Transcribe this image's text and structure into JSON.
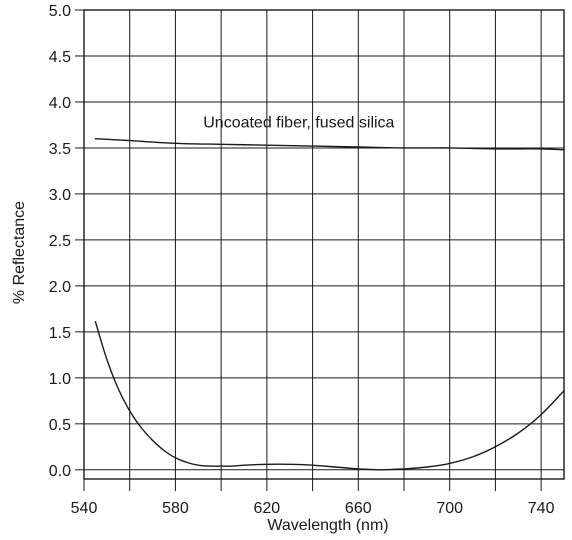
{
  "chart_data": {
    "type": "line",
    "title": "",
    "xlabel": "Wavelength (nm)",
    "ylabel": "% Reflectance",
    "xlim": [
      540,
      750
    ],
    "ylim": [
      -0.1,
      5.0
    ],
    "xticks": [
      540,
      580,
      620,
      660,
      700,
      740
    ],
    "xtick_labels": [
      "540",
      "580",
      "620",
      "660",
      "700",
      "740"
    ],
    "xgrid": [
      540,
      560,
      580,
      600,
      620,
      640,
      660,
      680,
      700,
      720,
      740
    ],
    "yticks": [
      0.0,
      0.5,
      1.0,
      1.5,
      2.0,
      2.5,
      3.0,
      3.5,
      4.0,
      4.5,
      5.0
    ],
    "ytick_labels": [
      "0.0",
      "0.5",
      "1.0",
      "1.5",
      "2.0",
      "2.5",
      "3.0",
      "3.5",
      "4.0",
      "4.5",
      "5.0"
    ],
    "grid": true,
    "line_color": "#1a1a1a",
    "grid_color": "#1a1a1a",
    "series": [
      {
        "x": [
          545,
          560,
          580,
          600,
          620,
          640,
          660,
          680,
          700,
          720,
          740,
          750
        ],
        "values": [
          3.6,
          3.58,
          3.55,
          3.54,
          3.53,
          3.52,
          3.51,
          3.5,
          3.5,
          3.49,
          3.49,
          3.48
        ]
      },
      {
        "x": [
          545,
          550,
          555,
          560,
          565,
          570,
          575,
          580,
          585,
          590,
          595,
          600,
          605,
          610,
          620,
          630,
          640,
          650,
          660,
          670,
          680,
          690,
          700,
          710,
          720,
          730,
          740,
          750
        ],
        "values": [
          1.61,
          1.2,
          0.88,
          0.64,
          0.46,
          0.32,
          0.21,
          0.13,
          0.08,
          0.05,
          0.04,
          0.04,
          0.04,
          0.05,
          0.06,
          0.06,
          0.05,
          0.03,
          0.01,
          0.0,
          0.01,
          0.03,
          0.07,
          0.14,
          0.25,
          0.4,
          0.6,
          0.86
        ]
      }
    ],
    "annotations": [
      {
        "text": "Uncoated fiber, fused silica",
        "x": 634,
        "y": 3.72
      }
    ]
  }
}
